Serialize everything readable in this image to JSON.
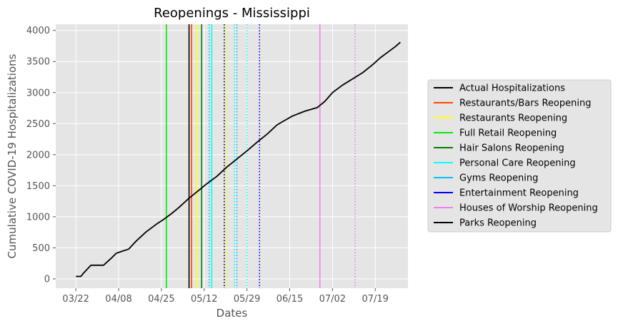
{
  "chart_data": {
    "type": "line",
    "title": "Reopenings - Mississippi",
    "xlabel": "Dates",
    "ylabel": "Cumulative COVID-19 Hospitalizations",
    "x_tick_labels": [
      "03/22",
      "04/08",
      "04/25",
      "05/12",
      "05/29",
      "06/15",
      "07/02",
      "07/19"
    ],
    "y_ticks": [
      0,
      500,
      1000,
      1500,
      2000,
      2500,
      3000,
      3500,
      4000
    ],
    "ylim": [
      -150,
      4100
    ],
    "xlim": [
      "2020-03-14",
      "2020-08-01"
    ],
    "grid": true,
    "legend_placement": "center-right, outside plot",
    "series": [
      {
        "name": "Actual Hospitalizations",
        "color": "#000000",
        "dates": [
          "2020-03-22",
          "2020-03-24",
          "2020-03-25",
          "2020-03-28",
          "2020-04-02",
          "2020-04-05",
          "2020-04-07",
          "2020-04-09",
          "2020-04-12",
          "2020-04-15",
          "2020-04-19",
          "2020-04-23",
          "2020-04-26",
          "2020-04-29",
          "2020-05-02",
          "2020-05-06",
          "2020-05-10",
          "2020-05-13",
          "2020-05-17",
          "2020-05-21",
          "2020-05-25",
          "2020-05-29",
          "2020-06-02",
          "2020-06-06",
          "2020-06-10",
          "2020-06-13",
          "2020-06-16",
          "2020-06-21",
          "2020-06-26",
          "2020-06-29",
          "2020-07-02",
          "2020-07-06",
          "2020-07-10",
          "2020-07-14",
          "2020-07-18",
          "2020-07-21",
          "2020-07-24",
          "2020-07-27",
          "2020-07-29"
        ],
        "values": [
          40,
          40,
          90,
          220,
          220,
          330,
          410,
          440,
          480,
          610,
          760,
          880,
          960,
          1050,
          1150,
          1300,
          1430,
          1530,
          1650,
          1800,
          1930,
          2060,
          2200,
          2330,
          2480,
          2550,
          2620,
          2700,
          2760,
          2860,
          3000,
          3120,
          3220,
          3320,
          3450,
          3560,
          3650,
          3740,
          3810
        ]
      }
    ],
    "reopening_events": [
      {
        "name": "Restaurants/Bars Reopening",
        "color": "#ff4500",
        "dates": [
          "2020-05-07"
        ],
        "style": "solid"
      },
      {
        "name": "Restaurants Reopening",
        "color": "#ffff00",
        "dates": [
          "2020-05-09",
          "2020-05-21"
        ],
        "styles": [
          "solid",
          "dotted"
        ]
      },
      {
        "name": "Full Retail Reopening",
        "color": "#00ee00",
        "dates": [
          "2020-04-27"
        ],
        "style": "solid"
      },
      {
        "name": "Hair Salons Reopening",
        "color": "#008000",
        "dates": [
          "2020-05-11"
        ],
        "style": "solid"
      },
      {
        "name": "Personal Care Reopening",
        "color": "#00ffff",
        "dates": [
          "2020-05-15",
          "2020-05-24",
          "2020-05-29"
        ],
        "styles": [
          "solid",
          "dotted",
          "dotted"
        ]
      },
      {
        "name": "Gyms Reopening",
        "color": "#00bfff",
        "dates": [
          "2020-05-14",
          "2020-05-25"
        ],
        "styles": [
          "dotted",
          "dotted"
        ]
      },
      {
        "name": "Entertainment Reopening",
        "color": "#0000ee",
        "dates": [
          "2020-06-03"
        ],
        "style": "dotted"
      },
      {
        "name": "Houses of Worship Reopening",
        "color": "#ee82ee",
        "dates": [
          "2020-06-27",
          "2020-07-11"
        ],
        "styles": [
          "solid",
          "dotted"
        ]
      },
      {
        "name": "Parks Reopening",
        "color": "#000000",
        "dates": [
          "2020-05-06",
          "2020-05-20"
        ],
        "styles": [
          "solid",
          "dotted"
        ]
      }
    ]
  }
}
